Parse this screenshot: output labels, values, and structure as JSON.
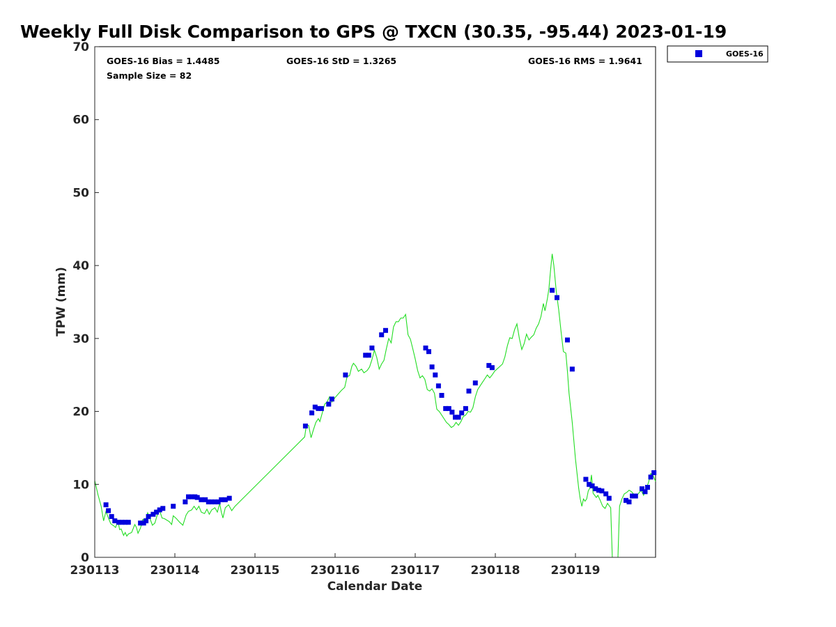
{
  "chart_data": {
    "type": "scatter",
    "title": "Weekly Full Disk Comparison to GPS @ TXCN (30.35, -95.44) 2023-01-19",
    "xlabel": "Calendar Date",
    "ylabel": "TPW (mm)",
    "xlim": [
      0,
      7
    ],
    "ylim": [
      0,
      70
    ],
    "x_unit": "days since 230113",
    "x_ticks": [
      {
        "value": 0,
        "label": "230113"
      },
      {
        "value": 1,
        "label": "230114"
      },
      {
        "value": 2,
        "label": "230115"
      },
      {
        "value": 3,
        "label": "230116"
      },
      {
        "value": 4,
        "label": "230117"
      },
      {
        "value": 5,
        "label": "230118"
      },
      {
        "value": 6,
        "label": "230119"
      }
    ],
    "y_ticks": [
      0,
      10,
      20,
      30,
      40,
      50,
      60,
      70
    ],
    "grid": false,
    "legend_position": "top-right, outside plot",
    "stats": {
      "bias": "GOES-16 Bias = 1.4485",
      "std": "GOES-16 StD = 1.3265",
      "rms": "GOES-16 RMS = 1.9641",
      "sample": "Sample Size = 82"
    },
    "series": [
      {
        "name": "GOES-16",
        "kind": "scatter",
        "color": "#0000dd",
        "marker": "square",
        "points": [
          [
            0.14,
            7.2
          ],
          [
            0.17,
            6.4
          ],
          [
            0.21,
            5.6
          ],
          [
            0.25,
            5.0
          ],
          [
            0.3,
            4.8
          ],
          [
            0.34,
            4.8
          ],
          [
            0.38,
            4.8
          ],
          [
            0.42,
            4.8
          ],
          [
            0.57,
            4.7
          ],
          [
            0.61,
            4.7
          ],
          [
            0.64,
            5.0
          ],
          [
            0.67,
            5.6
          ],
          [
            0.73,
            5.9
          ],
          [
            0.77,
            6.2
          ],
          [
            0.81,
            6.5
          ],
          [
            0.85,
            6.7
          ],
          [
            0.98,
            7.0
          ],
          [
            1.13,
            7.6
          ],
          [
            1.17,
            8.3
          ],
          [
            1.21,
            8.3
          ],
          [
            1.25,
            8.3
          ],
          [
            1.28,
            8.2
          ],
          [
            1.33,
            7.9
          ],
          [
            1.38,
            7.9
          ],
          [
            1.42,
            7.6
          ],
          [
            1.46,
            7.6
          ],
          [
            1.5,
            7.6
          ],
          [
            1.54,
            7.6
          ],
          [
            1.58,
            7.9
          ],
          [
            1.63,
            7.9
          ],
          [
            1.68,
            8.1
          ],
          [
            2.63,
            18.0
          ],
          [
            2.71,
            19.8
          ],
          [
            2.75,
            20.6
          ],
          [
            2.79,
            20.4
          ],
          [
            2.83,
            20.4
          ],
          [
            2.92,
            21.0
          ],
          [
            2.96,
            21.7
          ],
          [
            3.13,
            25.0
          ],
          [
            3.38,
            27.7
          ],
          [
            3.42,
            27.7
          ],
          [
            3.46,
            28.7
          ],
          [
            3.58,
            30.5
          ],
          [
            3.63,
            31.1
          ],
          [
            4.13,
            28.7
          ],
          [
            4.17,
            28.2
          ],
          [
            4.21,
            26.1
          ],
          [
            4.25,
            25.0
          ],
          [
            4.29,
            23.5
          ],
          [
            4.33,
            22.2
          ],
          [
            4.38,
            20.4
          ],
          [
            4.42,
            20.4
          ],
          [
            4.46,
            19.9
          ],
          [
            4.5,
            19.2
          ],
          [
            4.54,
            19.2
          ],
          [
            4.58,
            19.8
          ],
          [
            4.63,
            20.4
          ],
          [
            4.67,
            22.8
          ],
          [
            4.75,
            23.9
          ],
          [
            4.92,
            26.3
          ],
          [
            4.96,
            26.0
          ],
          [
            5.71,
            36.6
          ],
          [
            5.77,
            35.6
          ],
          [
            5.9,
            29.8
          ],
          [
            5.96,
            25.8
          ],
          [
            6.13,
            10.7
          ],
          [
            6.17,
            10.0
          ],
          [
            6.21,
            9.8
          ],
          [
            6.25,
            9.4
          ],
          [
            6.29,
            9.2
          ],
          [
            6.33,
            9.1
          ],
          [
            6.38,
            8.7
          ],
          [
            6.42,
            8.1
          ],
          [
            6.63,
            7.8
          ],
          [
            6.67,
            7.6
          ],
          [
            6.71,
            8.4
          ],
          [
            6.75,
            8.4
          ],
          [
            6.83,
            9.4
          ],
          [
            6.87,
            9.0
          ],
          [
            6.9,
            9.6
          ],
          [
            6.94,
            11.0
          ],
          [
            6.98,
            11.6
          ]
        ]
      },
      {
        "name": "GPS",
        "kind": "line",
        "color": "#22dd22",
        "points": [
          [
            0,
            10.5
          ],
          [
            0.04,
            8.6
          ],
          [
            0.08,
            7.0
          ],
          [
            0.11,
            5.0
          ],
          [
            0.14,
            6.3
          ],
          [
            0.17,
            5.4
          ],
          [
            0.2,
            4.6
          ],
          [
            0.24,
            4.3
          ],
          [
            0.26,
            4.1
          ],
          [
            0.29,
            5.0
          ],
          [
            0.31,
            3.8
          ],
          [
            0.33,
            3.9
          ],
          [
            0.36,
            3.0
          ],
          [
            0.38,
            3.4
          ],
          [
            0.4,
            2.9
          ],
          [
            0.42,
            3.2
          ],
          [
            0.46,
            3.4
          ],
          [
            0.5,
            4.5
          ],
          [
            0.52,
            4.1
          ],
          [
            0.54,
            3.3
          ],
          [
            0.57,
            4.0
          ],
          [
            0.6,
            5.2
          ],
          [
            0.63,
            4.9
          ],
          [
            0.66,
            6.1
          ],
          [
            0.69,
            5.3
          ],
          [
            0.72,
            4.4
          ],
          [
            0.75,
            4.7
          ],
          [
            0.78,
            5.8
          ],
          [
            0.81,
            6.4
          ],
          [
            0.84,
            5.4
          ],
          [
            0.87,
            5.3
          ],
          [
            0.9,
            5.1
          ],
          [
            0.93,
            4.9
          ],
          [
            0.96,
            4.5
          ],
          [
            0.98,
            5.7
          ],
          [
            1.02,
            5.3
          ],
          [
            1.06,
            4.8
          ],
          [
            1.1,
            4.4
          ],
          [
            1.14,
            5.8
          ],
          [
            1.17,
            6.3
          ],
          [
            1.21,
            6.5
          ],
          [
            1.24,
            7.0
          ],
          [
            1.27,
            6.5
          ],
          [
            1.3,
            7.0
          ],
          [
            1.33,
            6.2
          ],
          [
            1.37,
            6.0
          ],
          [
            1.4,
            6.6
          ],
          [
            1.43,
            5.9
          ],
          [
            1.46,
            6.5
          ],
          [
            1.5,
            6.8
          ],
          [
            1.53,
            6.2
          ],
          [
            1.56,
            7.4
          ],
          [
            1.58,
            6.2
          ],
          [
            1.6,
            5.4
          ],
          [
            1.63,
            6.8
          ],
          [
            1.67,
            7.2
          ],
          [
            1.71,
            6.4
          ],
          [
            1.75,
            7.0
          ],
          [
            2.62,
            16.5
          ],
          [
            2.64,
            18.0
          ],
          [
            2.67,
            18.1
          ],
          [
            2.7,
            16.4
          ],
          [
            2.73,
            17.5
          ],
          [
            2.76,
            18.5
          ],
          [
            2.79,
            19.0
          ],
          [
            2.81,
            18.6
          ],
          [
            2.84,
            19.8
          ],
          [
            2.87,
            21.0
          ],
          [
            2.9,
            21.3
          ],
          [
            2.93,
            22.0
          ],
          [
            2.96,
            21.3
          ],
          [
            3.0,
            21.9
          ],
          [
            3.04,
            22.4
          ],
          [
            3.08,
            22.9
          ],
          [
            3.12,
            23.3
          ],
          [
            3.15,
            24.8
          ],
          [
            3.18,
            24.9
          ],
          [
            3.21,
            26.2
          ],
          [
            3.23,
            26.6
          ],
          [
            3.26,
            26.2
          ],
          [
            3.29,
            25.5
          ],
          [
            3.33,
            25.8
          ],
          [
            3.36,
            25.3
          ],
          [
            3.4,
            25.6
          ],
          [
            3.43,
            26.1
          ],
          [
            3.46,
            27.1
          ],
          [
            3.49,
            28.4
          ],
          [
            3.52,
            27.4
          ],
          [
            3.55,
            25.8
          ],
          [
            3.58,
            26.5
          ],
          [
            3.61,
            27.0
          ],
          [
            3.64,
            28.6
          ],
          [
            3.67,
            30.0
          ],
          [
            3.7,
            29.4
          ],
          [
            3.73,
            31.6
          ],
          [
            3.76,
            32.3
          ],
          [
            3.79,
            32.3
          ],
          [
            3.82,
            32.8
          ],
          [
            3.85,
            32.8
          ],
          [
            3.88,
            33.3
          ],
          [
            3.91,
            30.5
          ],
          [
            3.94,
            29.9
          ],
          [
            3.97,
            28.6
          ],
          [
            4.0,
            27.2
          ],
          [
            4.03,
            25.6
          ],
          [
            4.06,
            24.6
          ],
          [
            4.09,
            24.9
          ],
          [
            4.12,
            24.4
          ],
          [
            4.15,
            23.0
          ],
          [
            4.18,
            22.8
          ],
          [
            4.21,
            23.1
          ],
          [
            4.24,
            22.5
          ],
          [
            4.27,
            20.3
          ],
          [
            4.3,
            20.0
          ],
          [
            4.33,
            19.5
          ],
          [
            4.36,
            19.0
          ],
          [
            4.39,
            18.5
          ],
          [
            4.42,
            18.2
          ],
          [
            4.45,
            17.8
          ],
          [
            4.48,
            18.0
          ],
          [
            4.51,
            18.5
          ],
          [
            4.54,
            18.1
          ],
          [
            4.57,
            18.6
          ],
          [
            4.6,
            19.3
          ],
          [
            4.63,
            19.5
          ],
          [
            4.66,
            20.0
          ],
          [
            4.69,
            19.9
          ],
          [
            4.72,
            20.5
          ],
          [
            4.75,
            22.0
          ],
          [
            4.78,
            23.0
          ],
          [
            4.81,
            23.5
          ],
          [
            4.84,
            24.0
          ],
          [
            4.87,
            24.5
          ],
          [
            4.9,
            25.0
          ],
          [
            4.93,
            24.6
          ],
          [
            4.96,
            25.0
          ],
          [
            4.99,
            25.5
          ],
          [
            5.02,
            25.8
          ],
          [
            5.06,
            26.2
          ],
          [
            5.09,
            26.5
          ],
          [
            5.12,
            27.5
          ],
          [
            5.15,
            29.0
          ],
          [
            5.18,
            30.1
          ],
          [
            5.21,
            30.0
          ],
          [
            5.24,
            31.2
          ],
          [
            5.27,
            32.0
          ],
          [
            5.3,
            30.0
          ],
          [
            5.33,
            28.5
          ],
          [
            5.36,
            29.3
          ],
          [
            5.39,
            30.6
          ],
          [
            5.42,
            29.8
          ],
          [
            5.45,
            30.2
          ],
          [
            5.48,
            30.5
          ],
          [
            5.51,
            31.4
          ],
          [
            5.54,
            32.0
          ],
          [
            5.57,
            33.0
          ],
          [
            5.6,
            34.8
          ],
          [
            5.62,
            33.8
          ],
          [
            5.65,
            35.5
          ],
          [
            5.67,
            36.9
          ],
          [
            5.69,
            39.5
          ],
          [
            5.71,
            41.6
          ],
          [
            5.73,
            40.0
          ],
          [
            5.76,
            36.5
          ],
          [
            5.79,
            34.0
          ],
          [
            5.82,
            31.0
          ],
          [
            5.85,
            28.2
          ],
          [
            5.88,
            28.0
          ],
          [
            5.9,
            25.5
          ],
          [
            5.92,
            22.5
          ],
          [
            5.94,
            20.5
          ],
          [
            5.96,
            18.5
          ],
          [
            5.98,
            16.0
          ],
          [
            6.0,
            13.5
          ],
          [
            6.02,
            11.5
          ],
          [
            6.04,
            9.5
          ],
          [
            6.06,
            8.0
          ],
          [
            6.08,
            7.0
          ],
          [
            6.1,
            8.0
          ],
          [
            6.12,
            7.7
          ],
          [
            6.14,
            8.0
          ],
          [
            6.16,
            9.1
          ],
          [
            6.18,
            9.5
          ],
          [
            6.2,
            11.3
          ],
          [
            6.22,
            8.8
          ],
          [
            6.24,
            8.5
          ],
          [
            6.26,
            8.2
          ],
          [
            6.28,
            8.5
          ],
          [
            6.31,
            7.8
          ],
          [
            6.34,
            7.0
          ],
          [
            6.37,
            6.7
          ],
          [
            6.4,
            7.4
          ],
          [
            6.42,
            7.1
          ],
          [
            6.44,
            6.8
          ],
          [
            6.46,
            0
          ],
          [
            6.47,
            -2.0
          ],
          [
            6.51,
            -2.0
          ],
          [
            6.53,
            0
          ],
          [
            6.55,
            7.0
          ],
          [
            6.58,
            8.0
          ],
          [
            6.61,
            8.7
          ],
          [
            6.64,
            8.9
          ],
          [
            6.67,
            9.2
          ],
          [
            6.7,
            9.0
          ],
          [
            6.73,
            8.6
          ],
          [
            6.76,
            8.4
          ],
          [
            6.79,
            8.8
          ],
          [
            6.82,
            9.2
          ],
          [
            6.85,
            8.5
          ],
          [
            6.88,
            9.4
          ],
          [
            6.91,
            10.2
          ],
          [
            6.94,
            11.5
          ],
          [
            6.97,
            11.2
          ],
          [
            7.0,
            10.4
          ]
        ]
      }
    ]
  }
}
